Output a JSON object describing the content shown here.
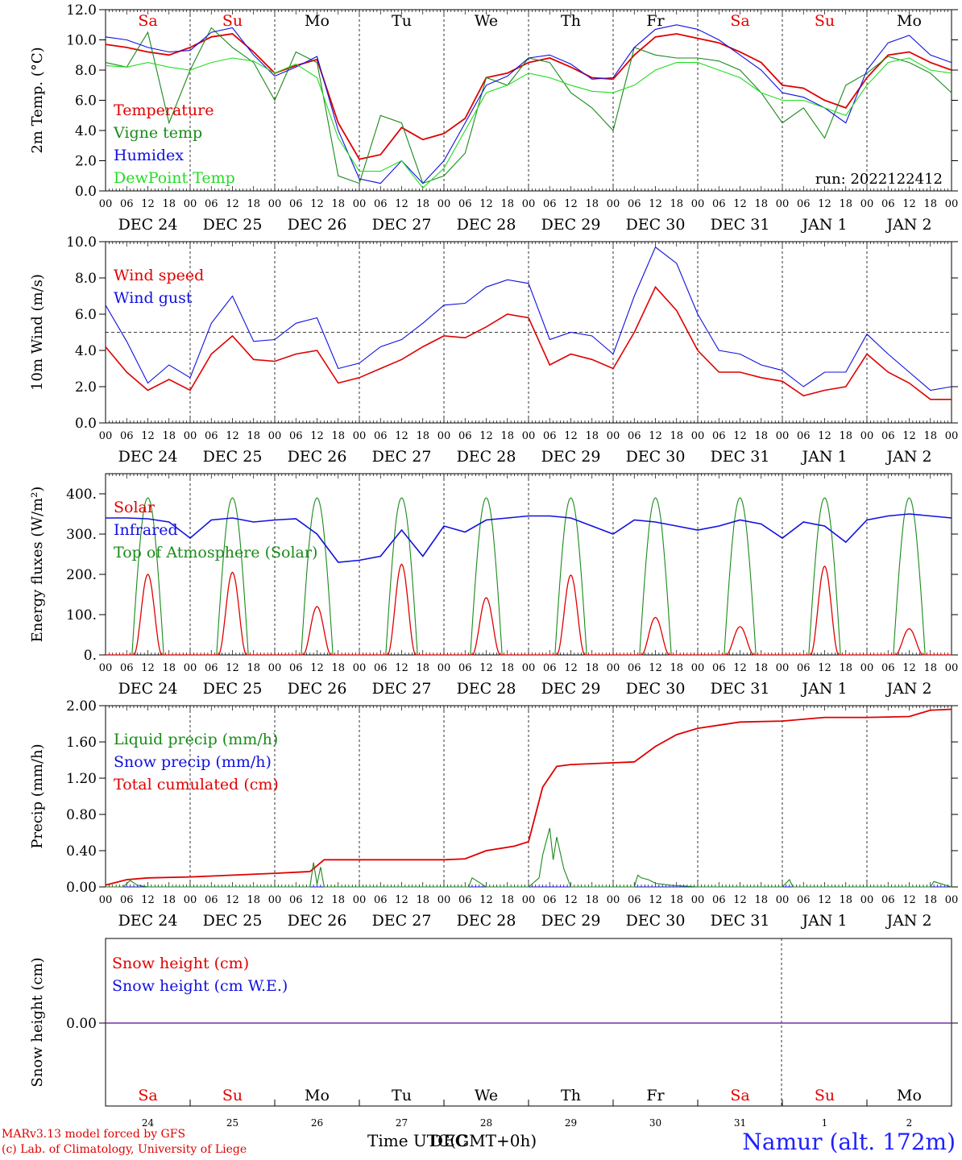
{
  "days": [
    "DEC 24",
    "DEC 25",
    "DEC 26",
    "DEC 27",
    "DEC 28",
    "DEC 29",
    "DEC 30",
    "DEC 31",
    "JAN  1",
    "JAN  2"
  ],
  "weekdays": [
    {
      "label": "Sa",
      "color": "#e00000"
    },
    {
      "label": "Su",
      "color": "#e00000"
    },
    {
      "label": "Mo",
      "color": "#000000"
    },
    {
      "label": "Tu",
      "color": "#000000"
    },
    {
      "label": "We",
      "color": "#000000"
    },
    {
      "label": "Th",
      "color": "#000000"
    },
    {
      "label": "Fr",
      "color": "#000000"
    },
    {
      "label": "Sa",
      "color": "#e00000"
    },
    {
      "label": "Su",
      "color": "#e00000"
    },
    {
      "label": "Mo",
      "color": "#000000"
    }
  ],
  "hour_labels": [
    "00",
    "06",
    "12",
    "18"
  ],
  "bottom_day_numbers": [
    "24",
    "25",
    "26",
    "27",
    "28",
    "29",
    "30",
    "31",
    "1",
    "2"
  ],
  "footer": {
    "model_line": "MARv3.13 model forced by GFS",
    "lab_line": "(c) Lab. of Climatology, University of Liege",
    "axis_title": "Time UTC(GMT+0h)",
    "axis_title_overlap": "DEC",
    "station": "Namur (alt. 172m)"
  },
  "colors": {
    "red": "#e00000",
    "green": "#1a8a1a",
    "blue": "#1010e0",
    "lightgreen": "#22dd22",
    "purple": "#7030a0"
  },
  "chart_data": [
    {
      "type": "line",
      "id": "temperature",
      "ylabel": "2m Temp. (°C)",
      "ylim": [
        0,
        12
      ],
      "yticks": [
        "0.0",
        "2.0",
        "4.0",
        "6.0",
        "8.0",
        "10.0",
        "12.0"
      ],
      "annotation": "run: 2022122412",
      "x_unit": "hours since DEC 24 00 UTC",
      "series": [
        {
          "name": "Temperature",
          "color": "#e00000",
          "x": [
            0,
            6,
            12,
            18,
            24,
            30,
            36,
            42,
            48,
            54,
            60,
            66,
            72,
            78,
            84,
            90,
            96,
            102,
            108,
            114,
            120,
            126,
            132,
            138,
            144,
            150,
            156,
            162,
            168,
            174,
            180,
            186,
            192,
            198,
            204,
            210,
            216,
            222,
            228,
            234,
            240
          ],
          "y": [
            9.7,
            9.5,
            9.2,
            9.0,
            9.5,
            10.2,
            10.4,
            9.2,
            7.8,
            8.3,
            8.7,
            4.5,
            2.1,
            2.4,
            4.2,
            3.4,
            3.8,
            4.8,
            7.5,
            7.8,
            8.5,
            8.8,
            8.2,
            7.5,
            7.4,
            9.0,
            10.2,
            10.4,
            10.1,
            9.8,
            9.2,
            8.5,
            7.0,
            6.8,
            6.0,
            5.5,
            7.5,
            9.0,
            9.2,
            8.5,
            8.0
          ]
        },
        {
          "name": "Vigne temp",
          "color": "#1a8a1a",
          "x": [
            0,
            6,
            12,
            18,
            24,
            30,
            36,
            42,
            48,
            54,
            60,
            66,
            72,
            78,
            84,
            90,
            96,
            102,
            108,
            114,
            120,
            126,
            132,
            138,
            144,
            150,
            156,
            162,
            168,
            174,
            180,
            186,
            192,
            198,
            204,
            210,
            216,
            222,
            228,
            234,
            240
          ],
          "y": [
            8.5,
            8.2,
            10.5,
            4.5,
            8.0,
            10.8,
            9.5,
            8.5,
            6.0,
            9.2,
            8.5,
            1.0,
            0.5,
            5.0,
            4.5,
            0.5,
            1.0,
            2.5,
            7.5,
            7.0,
            8.8,
            8.5,
            6.5,
            5.5,
            4.0,
            9.5,
            9.0,
            8.8,
            8.8,
            8.6,
            8.0,
            6.5,
            4.5,
            5.5,
            3.5,
            7.0,
            7.8,
            8.9,
            8.5,
            7.8,
            6.5
          ]
        },
        {
          "name": "Humidex",
          "color": "#1010e0",
          "x": [
            0,
            6,
            12,
            18,
            24,
            30,
            36,
            42,
            48,
            54,
            60,
            66,
            72,
            78,
            84,
            90,
            96,
            102,
            108,
            114,
            120,
            126,
            132,
            138,
            144,
            150,
            156,
            162,
            168,
            174,
            180,
            186,
            192,
            198,
            204,
            210,
            216,
            222,
            228,
            234,
            240
          ],
          "y": [
            10.2,
            10.0,
            9.5,
            9.2,
            9.3,
            10.5,
            10.8,
            9.0,
            7.6,
            8.2,
            8.9,
            4.0,
            0.8,
            0.5,
            2.0,
            0.5,
            2.0,
            4.5,
            7.0,
            7.6,
            8.8,
            9.0,
            8.4,
            7.4,
            7.5,
            9.5,
            10.7,
            11.0,
            10.7,
            10.0,
            9.0,
            8.0,
            6.5,
            6.2,
            5.5,
            4.5,
            8.0,
            9.8,
            10.3,
            9.0,
            8.5
          ]
        },
        {
          "name": "DewPoint Temp",
          "color": "#22dd22",
          "x": [
            0,
            6,
            12,
            18,
            24,
            30,
            36,
            42,
            48,
            54,
            60,
            66,
            72,
            78,
            84,
            90,
            96,
            102,
            108,
            114,
            120,
            126,
            132,
            138,
            144,
            150,
            156,
            162,
            168,
            174,
            180,
            186,
            192,
            198,
            204,
            210,
            216,
            222,
            228,
            234,
            240
          ],
          "y": [
            8.3,
            8.2,
            8.5,
            8.2,
            8.0,
            8.5,
            8.8,
            8.6,
            7.8,
            8.4,
            7.5,
            3.5,
            1.3,
            1.3,
            2.0,
            0.2,
            1.5,
            4.0,
            6.5,
            7.0,
            7.8,
            7.5,
            7.0,
            6.6,
            6.5,
            7.0,
            8.0,
            8.5,
            8.5,
            8.0,
            7.5,
            6.5,
            6.0,
            6.0,
            5.5,
            5.0,
            7.0,
            8.5,
            8.8,
            8.0,
            7.8
          ]
        }
      ]
    },
    {
      "type": "line",
      "id": "wind",
      "ylabel": "10m Wind (m/s)",
      "ylim": [
        0,
        10
      ],
      "yticks": [
        "0.0",
        "2.0",
        "4.0",
        "6.0",
        "8.0",
        "10.0"
      ],
      "reference_line": 5,
      "x_unit": "hours since DEC 24 00 UTC",
      "series": [
        {
          "name": "Wind speed",
          "color": "#e00000",
          "x": [
            0,
            6,
            12,
            18,
            24,
            30,
            36,
            42,
            48,
            54,
            60,
            66,
            72,
            78,
            84,
            90,
            96,
            102,
            108,
            114,
            120,
            126,
            132,
            138,
            144,
            150,
            156,
            162,
            168,
            174,
            180,
            186,
            192,
            198,
            204,
            210,
            216,
            222,
            228,
            234,
            240
          ],
          "y": [
            4.2,
            2.8,
            1.8,
            2.4,
            1.8,
            3.8,
            4.8,
            3.5,
            3.4,
            3.8,
            4.0,
            2.2,
            2.5,
            3.0,
            3.5,
            4.2,
            4.8,
            4.7,
            5.3,
            6.0,
            5.8,
            3.2,
            3.8,
            3.5,
            3.0,
            5.0,
            7.5,
            6.2,
            4.0,
            2.8,
            2.8,
            2.5,
            2.3,
            1.5,
            1.8,
            2.0,
            3.8,
            2.8,
            2.2,
            1.3,
            1.3
          ]
        },
        {
          "name": "Wind gust",
          "color": "#1010e0",
          "x": [
            0,
            6,
            12,
            18,
            24,
            30,
            36,
            42,
            48,
            54,
            60,
            66,
            72,
            78,
            84,
            90,
            96,
            102,
            108,
            114,
            120,
            126,
            132,
            138,
            144,
            150,
            156,
            162,
            168,
            174,
            180,
            186,
            192,
            198,
            204,
            210,
            216,
            222,
            228,
            234,
            240
          ],
          "y": [
            6.5,
            4.5,
            2.2,
            3.2,
            2.5,
            5.5,
            7.0,
            4.5,
            4.6,
            5.5,
            5.8,
            3.0,
            3.3,
            4.2,
            4.6,
            5.5,
            6.5,
            6.6,
            7.5,
            7.9,
            7.7,
            4.6,
            5.0,
            4.8,
            3.8,
            7.0,
            9.7,
            8.8,
            6.0,
            4.0,
            3.8,
            3.2,
            2.9,
            2.0,
            2.8,
            2.8,
            4.9,
            3.8,
            2.8,
            1.8,
            2.0
          ]
        }
      ]
    },
    {
      "type": "line",
      "id": "energy",
      "ylabel": "Energy fluxes (W/m²)",
      "ylim": [
        0,
        450
      ],
      "yticks": [
        "0.",
        "100.",
        "200.",
        "300.",
        "400."
      ],
      "x_unit": "hours since DEC 24 00 UTC",
      "series": [
        {
          "name": "Solar",
          "color": "#e00000",
          "peaks": [
            200,
            205,
            120,
            225,
            142,
            198,
            93,
            70,
            220,
            65
          ]
        },
        {
          "name": "Infrared",
          "color": "#1010e0",
          "x": [
            0,
            6,
            12,
            18,
            24,
            30,
            36,
            42,
            48,
            54,
            60,
            66,
            72,
            78,
            84,
            90,
            96,
            102,
            108,
            114,
            120,
            126,
            132,
            138,
            144,
            150,
            156,
            162,
            168,
            174,
            180,
            186,
            192,
            198,
            204,
            210,
            216,
            222,
            228,
            234,
            240
          ],
          "y": [
            340,
            340,
            338,
            330,
            290,
            335,
            340,
            330,
            335,
            338,
            300,
            230,
            235,
            245,
            310,
            245,
            320,
            305,
            335,
            340,
            345,
            345,
            340,
            320,
            300,
            335,
            330,
            320,
            310,
            320,
            335,
            325,
            290,
            330,
            320,
            280,
            335,
            345,
            350,
            345,
            340
          ]
        },
        {
          "name": "Top of Atmosphere (Solar)",
          "color": "#1a8a1a",
          "peak": 390
        }
      ]
    },
    {
      "type": "line",
      "id": "precip",
      "ylabel": "Precip (mm/h)",
      "ylim": [
        0,
        2
      ],
      "yticks": [
        "0.00",
        "0.40",
        "0.80",
        "1.20",
        "1.60",
        "2.00"
      ],
      "x_unit": "hours since DEC 24 00 UTC",
      "series": [
        {
          "name": "Liquid precip (mm/h)",
          "color": "#1a8a1a",
          "x": [
            0,
            5,
            7,
            9,
            12,
            24,
            48,
            58,
            59,
            60,
            61,
            62,
            66,
            96,
            103,
            104,
            108,
            120,
            123,
            124,
            126,
            127,
            128,
            130,
            132,
            137,
            144,
            150,
            151,
            152,
            154,
            156,
            160,
            168,
            192,
            194,
            195,
            196,
            216,
            234,
            235,
            240
          ],
          "y": [
            0,
            0,
            0.07,
            0.02,
            0,
            0,
            0,
            0,
            0.27,
            0.03,
            0.22,
            0,
            0,
            0,
            0,
            0.1,
            0,
            0,
            0.1,
            0.35,
            0.65,
            0.3,
            0.55,
            0.2,
            0,
            0,
            0,
            0,
            0.13,
            0.1,
            0.08,
            0.04,
            0.02,
            0,
            0,
            0.08,
            0,
            0,
            0,
            0,
            0.06,
            0
          ]
        },
        {
          "name": "Snow precip (mm/h)",
          "color": "#1010e0",
          "x": [
            0,
            240
          ],
          "y": [
            0,
            0
          ]
        },
        {
          "name": "Total cumulated (cm)",
          "color": "#e00000",
          "x": [
            0,
            6,
            12,
            24,
            36,
            48,
            58,
            62,
            72,
            84,
            96,
            102,
            108,
            116,
            120,
            124,
            128,
            132,
            138,
            144,
            150,
            156,
            162,
            168,
            180,
            192,
            204,
            216,
            228,
            234,
            240
          ],
          "y": [
            0.02,
            0.08,
            0.1,
            0.11,
            0.13,
            0.15,
            0.17,
            0.3,
            0.3,
            0.3,
            0.3,
            0.31,
            0.4,
            0.45,
            0.5,
            1.1,
            1.33,
            1.35,
            1.36,
            1.37,
            1.38,
            1.55,
            1.68,
            1.75,
            1.82,
            1.83,
            1.87,
            1.87,
            1.88,
            1.95,
            1.96
          ]
        }
      ]
    },
    {
      "type": "line",
      "id": "snow",
      "ylabel": "Snow height (cm)",
      "yticks": [
        "0.00"
      ],
      "x_unit": "hours since DEC 24 00 UTC",
      "series": [
        {
          "name": "Snow height (cm)",
          "color": "#e00000",
          "x": [
            0,
            240
          ],
          "y": [
            0,
            0
          ]
        },
        {
          "name": "Snow height (cm W.E.)",
          "color": "#1010e0",
          "x": [
            0,
            240
          ],
          "y": [
            0,
            0
          ]
        }
      ]
    }
  ]
}
